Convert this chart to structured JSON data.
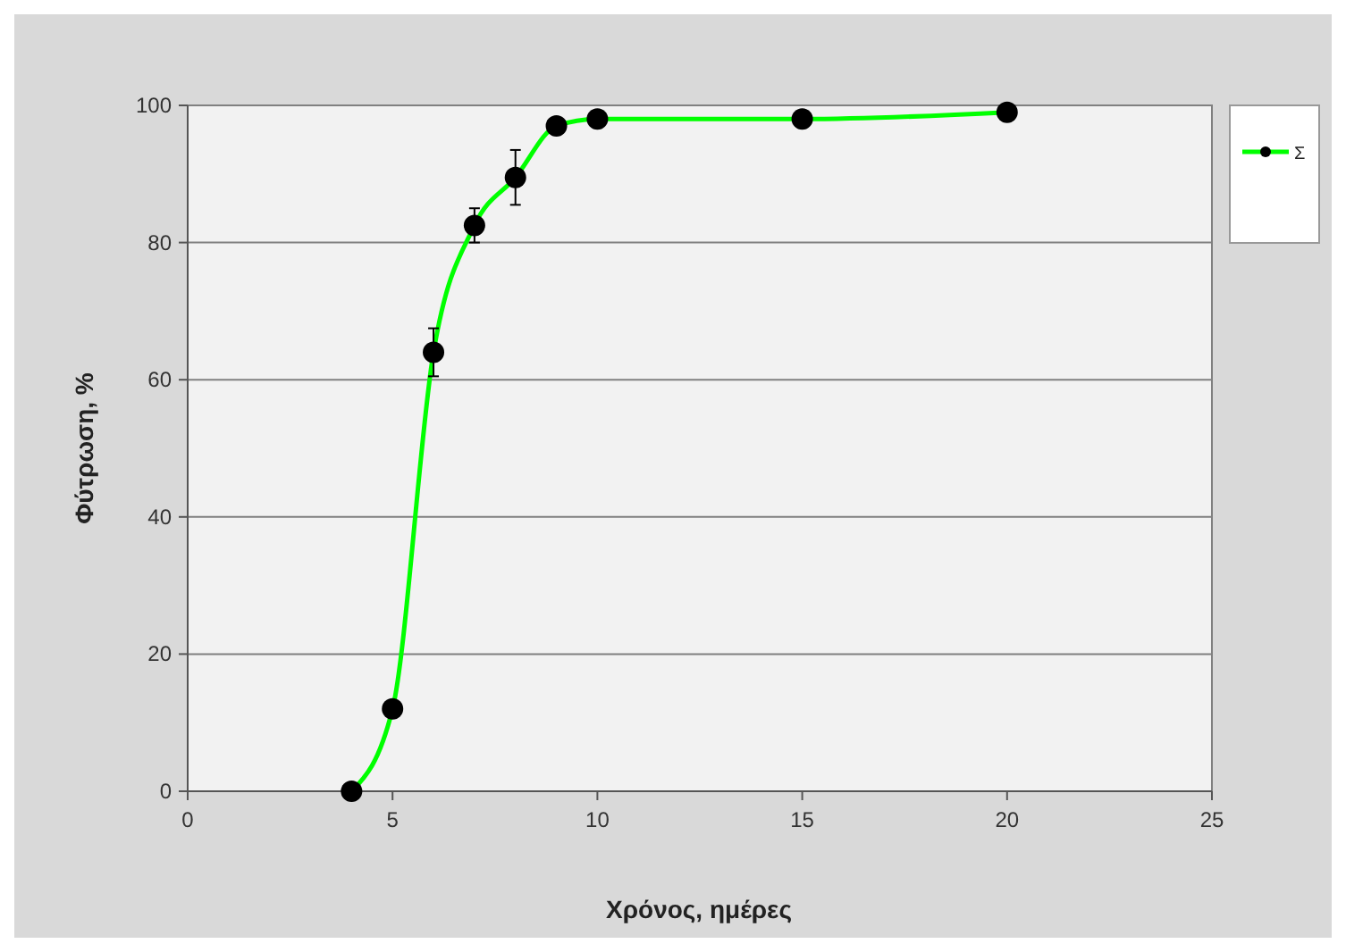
{
  "chart_data": {
    "type": "line",
    "xlabel": "Χρόνος, ημέρες",
    "ylabel": "Φύτρωση, %",
    "x": [
      4,
      5,
      6,
      7,
      8,
      9,
      10,
      15,
      20
    ],
    "series": [
      {
        "name": "Σ",
        "color": "#00ff00",
        "values": [
          0,
          12,
          64,
          82.5,
          89.5,
          97,
          98,
          98,
          99
        ],
        "errors": [
          null,
          null,
          3.5,
          2.5,
          4,
          null,
          null,
          null,
          null
        ]
      }
    ],
    "xlim": [
      0,
      25
    ],
    "xticks": [
      0,
      5,
      10,
      15,
      20,
      25
    ],
    "ylim": [
      0,
      100
    ],
    "yticks": [
      0,
      20,
      40,
      60,
      80,
      100
    ],
    "grid": "y",
    "legend": "top right",
    "marker": "circle",
    "line_style": "solid"
  }
}
